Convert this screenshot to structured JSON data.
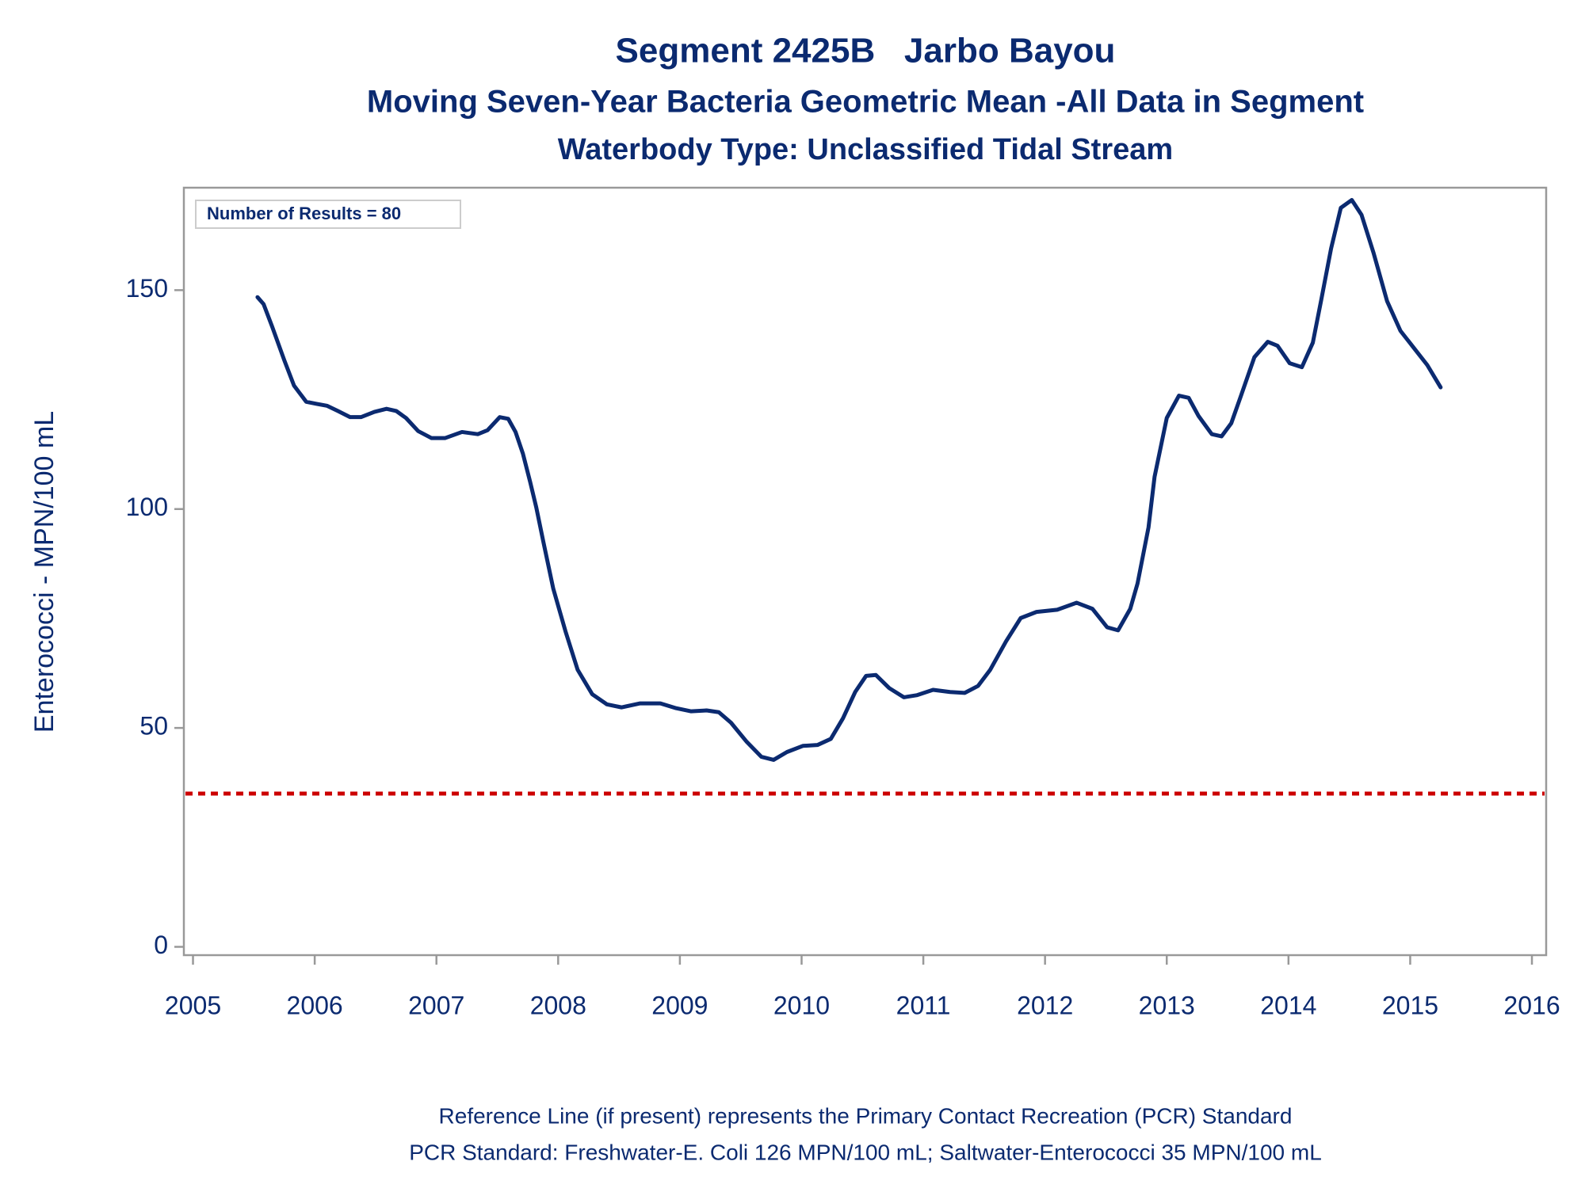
{
  "chart_data": {
    "type": "line",
    "title": "Segment 2425B   Jarbo Bayou",
    "subtitle": "Moving Seven-Year Bacteria Geometric Mean -All Data in Segment",
    "subtitle2": "Waterbody Type: Unclassified Tidal Stream",
    "ylabel": "Enterococci - MPN/100 mL",
    "annotation": "Number of Results = 80",
    "footnotes": [
      "Reference Line (if present) represents the Primary Contact Recreation (PCR) Standard",
      "PCR Standard: Freshwater-E. Coli 126 MPN/100 mL; Saltwater-Enterococci 35 MPN/100 mL"
    ],
    "x": [
      2005.53,
      2005.58,
      2005.65,
      2005.75,
      2005.83,
      2005.93,
      2006.02,
      2006.1,
      2006.19,
      2006.29,
      2006.38,
      2006.49,
      2006.59,
      2006.67,
      2006.75,
      2006.85,
      2006.96,
      2007.07,
      2007.21,
      2007.34,
      2007.42,
      2007.52,
      2007.59,
      2007.65,
      2007.71,
      2007.77,
      2007.82,
      2007.88,
      2007.96,
      2008.06,
      2008.16,
      2008.28,
      2008.4,
      2008.52,
      2008.67,
      2008.84,
      2008.97,
      2009.09,
      2009.22,
      2009.32,
      2009.42,
      2009.55,
      2009.67,
      2009.77,
      2009.88,
      2010.01,
      2010.13,
      2010.24,
      2010.34,
      2010.44,
      2010.53,
      2010.61,
      2010.72,
      2010.84,
      2010.95,
      2011.08,
      2011.22,
      2011.34,
      2011.45,
      2011.55,
      2011.68,
      2011.8,
      2011.93,
      2012.1,
      2012.26,
      2012.39,
      2012.51,
      2012.6,
      2012.7,
      2012.76,
      2012.85,
      2012.9,
      2013.0,
      2013.1,
      2013.18,
      2013.26,
      2013.37,
      2013.45,
      2013.53,
      2013.61,
      2013.72,
      2013.83,
      2013.91,
      2014.01,
      2014.11,
      2014.2,
      2014.27,
      2014.35,
      2014.43,
      2014.52,
      2014.6,
      2014.7,
      2014.81,
      2014.92,
      2015.03,
      2015.14,
      2015.25
    ],
    "series": [
      {
        "name": "Geometric Mean",
        "color": "#0b2a70",
        "values": [
          148.4,
          146.8,
          141.7,
          134,
          128.2,
          124.5,
          124,
          123.6,
          122.4,
          121,
          121,
          122.2,
          122.9,
          122.4,
          120.8,
          117.8,
          116.2,
          116.2,
          117.6,
          117.1,
          118,
          121,
          120.6,
          117.6,
          112.7,
          106.2,
          100.4,
          92.3,
          81.8,
          72.1,
          63.3,
          57.7,
          55.4,
          54.7,
          55.6,
          55.6,
          54.5,
          53.8,
          54,
          53.6,
          51.2,
          46.8,
          43.4,
          42.7,
          44.5,
          45.9,
          46.1,
          47.5,
          52.2,
          58.2,
          61.9,
          62.1,
          59.1,
          57,
          57.5,
          58.7,
          58.2,
          58,
          59.6,
          63.3,
          69.8,
          75.1,
          76.5,
          77,
          78.6,
          77.2,
          73,
          72.3,
          77.2,
          83,
          95.8,
          107.4,
          120.8,
          125.9,
          125.4,
          121.3,
          117.1,
          116.6,
          119.6,
          125.9,
          134.7,
          138.2,
          137.3,
          133.3,
          132.4,
          138,
          147.9,
          159.5,
          168.8,
          170.6,
          167.2,
          158.4,
          147.5,
          140.7,
          136.8,
          132.9,
          127.8
        ]
      }
    ],
    "reference_line": {
      "value": 35,
      "color": "#cc0000"
    },
    "xlim": [
      2004.925,
      2016.117
    ],
    "xticks": [
      2005,
      2006,
      2007,
      2008,
      2009,
      2010,
      2011,
      2012,
      2013,
      2014,
      2015,
      2016
    ],
    "ylim": [
      -1.9,
      173.4
    ],
    "yticks": [
      0,
      50,
      100,
      150
    ]
  }
}
